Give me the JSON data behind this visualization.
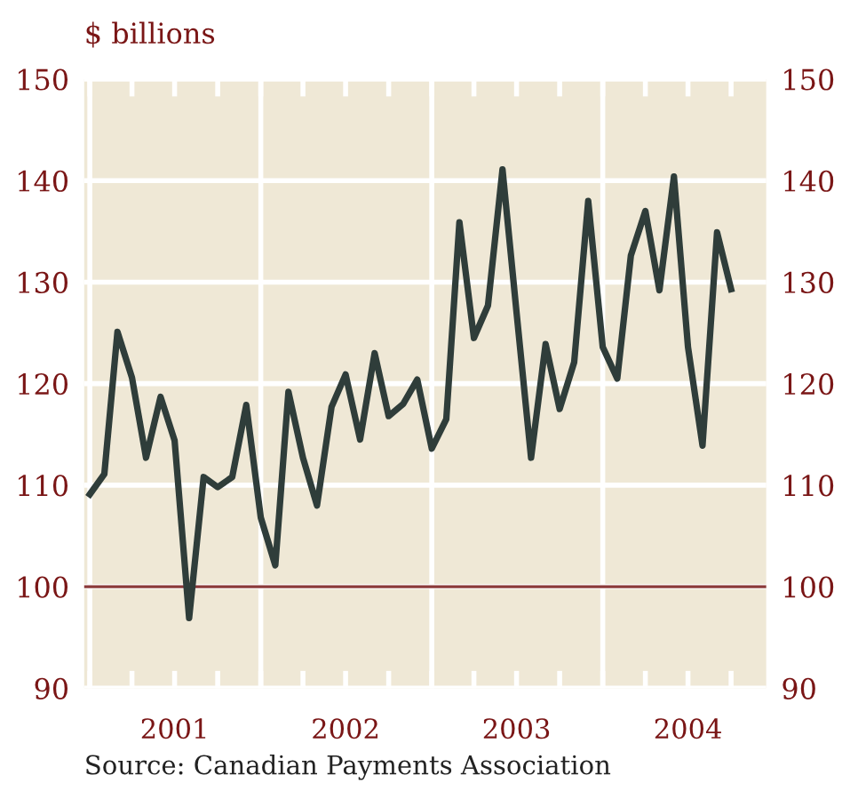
{
  "chart_data": {
    "type": "line",
    "ylabel": "$ billions",
    "annotations": [
      "Source: Canadian Payments Association"
    ],
    "x": [
      "2001-01",
      "2001-02",
      "2001-03",
      "2001-04",
      "2001-05",
      "2001-06",
      "2001-07",
      "2001-08",
      "2001-09",
      "2001-10",
      "2001-11",
      "2001-12",
      "2002-01",
      "2002-02",
      "2002-03",
      "2002-04",
      "2002-05",
      "2002-06",
      "2002-07",
      "2002-08",
      "2002-09",
      "2002-10",
      "2002-11",
      "2002-12",
      "2003-01",
      "2003-02",
      "2003-03",
      "2003-04",
      "2003-05",
      "2003-06",
      "2003-07",
      "2003-08",
      "2003-09",
      "2003-10",
      "2003-11",
      "2003-12",
      "2004-01",
      "2004-02",
      "2004-03",
      "2004-04",
      "2004-05",
      "2004-06",
      "2004-07",
      "2004-08",
      "2004-09",
      "2004-10"
    ],
    "series": [
      {
        "color": "#2f3d3a",
        "values": [
          109.1,
          111.1,
          125.1,
          120.6,
          112.7,
          118.7,
          114.4,
          96.9,
          110.8,
          109.8,
          110.8,
          117.9,
          106.8,
          102.1,
          119.2,
          112.7,
          108.0,
          117.7,
          120.9,
          114.5,
          123.0,
          116.8,
          118.0,
          120.4,
          113.6,
          116.5,
          135.9,
          124.5,
          127.7,
          141.1,
          127,
          112.7,
          123.9,
          117.5,
          122.1,
          138.0,
          123.6,
          120.5,
          132.6,
          137.0,
          129.2,
          140.4,
          123.6,
          113.9,
          134.9,
          129.3
        ]
      }
    ],
    "xlim": [
      "2000-12-20",
      "2004-12-15"
    ],
    "xticks": [
      {
        "value": "2001-01",
        "label": null
      },
      {
        "value": "2001-04",
        "label": null
      },
      {
        "value": "2001-07",
        "label": "2001"
      },
      {
        "value": "2001-10",
        "label": null
      },
      {
        "value": "2002-01",
        "label": null
      },
      {
        "value": "2002-04",
        "label": null
      },
      {
        "value": "2002-07",
        "label": "2002"
      },
      {
        "value": "2002-10",
        "label": null
      },
      {
        "value": "2003-01",
        "label": null
      },
      {
        "value": "2003-04",
        "label": null
      },
      {
        "value": "2003-07",
        "label": "2003"
      },
      {
        "value": "2003-10",
        "label": null
      },
      {
        "value": "2004-01",
        "label": null
      },
      {
        "value": "2004-04",
        "label": null
      },
      {
        "value": "2004-07",
        "label": "2004"
      },
      {
        "value": "2004-10",
        "label": null
      }
    ],
    "ylim": [
      90,
      150
    ],
    "yticks": [
      90,
      100,
      110,
      120,
      130,
      140,
      150
    ],
    "y2lim": [
      90,
      150
    ],
    "y2ticks": [
      90,
      100,
      110,
      120,
      130,
      140,
      150
    ],
    "ref_lines": [
      {
        "axis": "y",
        "value": 100,
        "color": "#8b3a3a"
      }
    ],
    "grid": true,
    "marker": "none",
    "line_style": "solid"
  }
}
